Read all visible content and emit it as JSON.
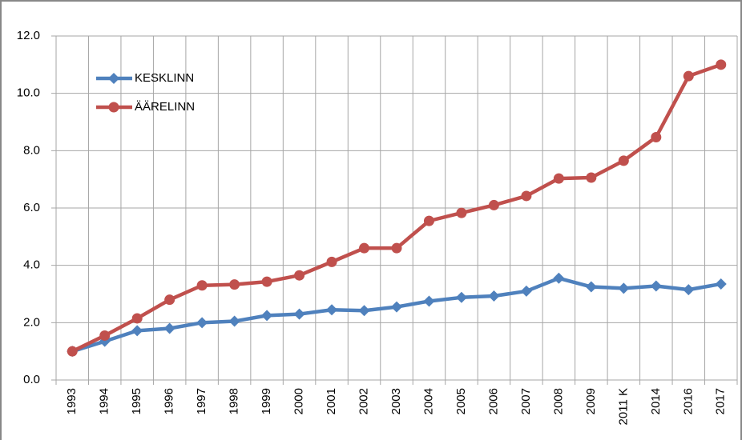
{
  "chart_data": {
    "type": "line",
    "categories": [
      "1993",
      "1994",
      "1995",
      "1996",
      "1997",
      "1998",
      "1999",
      "2000",
      "2001",
      "2002",
      "2003",
      "2004",
      "2005",
      "2006",
      "2007",
      "2008",
      "2009",
      "2011 K",
      "2014",
      "2016",
      "2017"
    ],
    "series": [
      {
        "name": "KESKLINN",
        "color": "#4f81bd",
        "marker": "diamond",
        "values": [
          1.0,
          1.35,
          1.72,
          1.8,
          2.0,
          2.05,
          2.25,
          2.3,
          2.45,
          2.42,
          2.55,
          2.75,
          2.88,
          2.93,
          3.1,
          3.55,
          3.25,
          3.2,
          3.28,
          3.15,
          3.35
        ]
      },
      {
        "name": "ÄÄRELINN",
        "color": "#c0504d",
        "marker": "circle",
        "values": [
          1.0,
          1.55,
          2.15,
          2.8,
          3.3,
          3.33,
          3.43,
          3.65,
          4.12,
          4.6,
          4.6,
          5.55,
          5.83,
          6.1,
          6.42,
          7.03,
          7.06,
          7.65,
          8.47,
          10.6,
          11.0
        ]
      }
    ],
    "ylim": [
      0,
      12
    ],
    "yticks": [
      {
        "value": 0,
        "label": "0.0"
      },
      {
        "value": 2,
        "label": "2.0"
      },
      {
        "value": 4,
        "label": "4.0"
      },
      {
        "value": 6,
        "label": "6.0"
      },
      {
        "value": 8,
        "label": "8.0"
      },
      {
        "value": 10,
        "label": "10.0"
      },
      {
        "value": 12,
        "label": "12.0"
      }
    ],
    "grid": true,
    "legend": "upper left"
  }
}
